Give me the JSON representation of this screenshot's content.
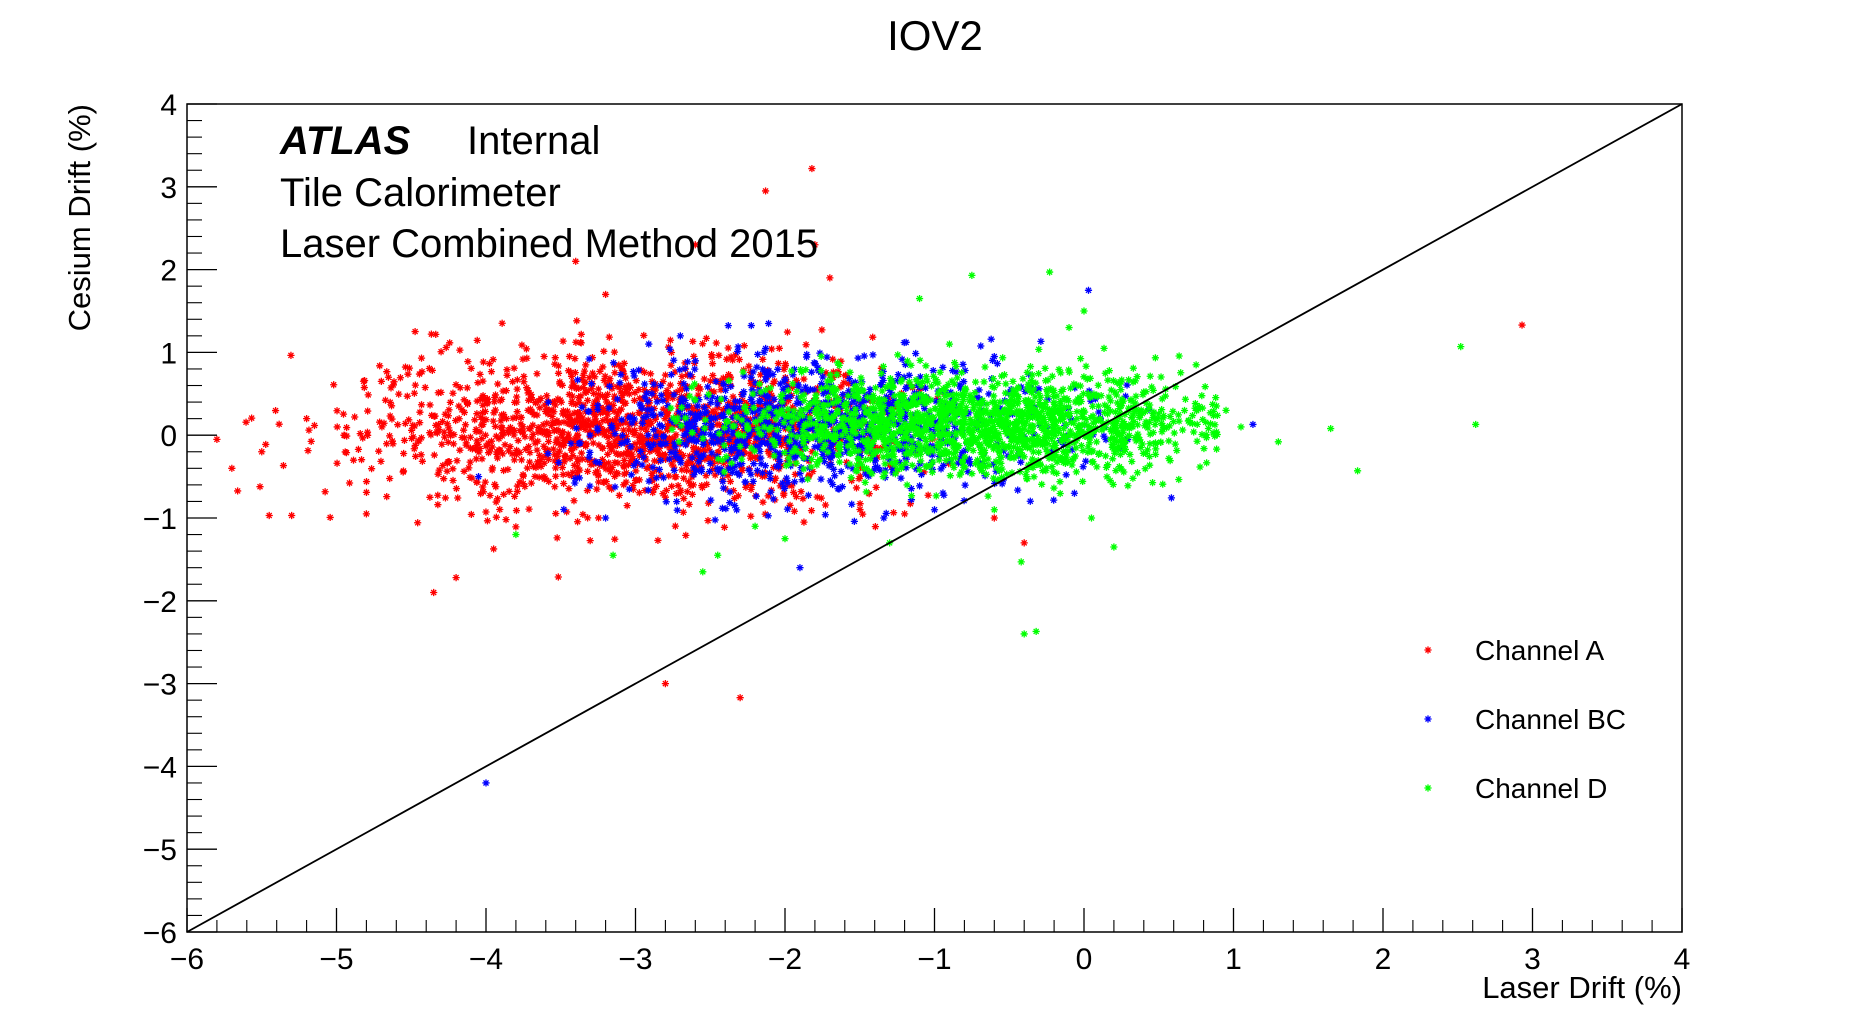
{
  "chart_data": {
    "type": "scatter",
    "title": "IOV2",
    "xlabel": "Laser Drift (%)",
    "ylabel": "Cesium Drift (%)",
    "xlim": [
      -6,
      4
    ],
    "ylim": [
      -6,
      4
    ],
    "xticks": [
      "−6",
      "−5",
      "−4",
      "−3",
      "−2",
      "−1",
      "0",
      "1",
      "2",
      "3",
      "4"
    ],
    "yticks": [
      "−6",
      "−5",
      "−4",
      "−3",
      "−2",
      "−1",
      "0",
      "1",
      "2",
      "3",
      "4"
    ],
    "marker": "asterisk",
    "grid": false,
    "legend_position": "bottom-right",
    "annotations": {
      "atlas": "ATLAS",
      "internal": "Internal",
      "line2": "Tile Calorimeter",
      "line3": "Laser Combined Method 2015"
    },
    "reference_line": {
      "x": [
        -6,
        4
      ],
      "y": [
        -6,
        4
      ],
      "color": "#000000"
    },
    "series": [
      {
        "name": "Channel A",
        "color": "#ff0000",
        "cluster": {
          "x_center": -3.0,
          "x_spread": 0.9,
          "x_range": [
            -5.8,
            -0.9
          ],
          "y_center": 0.05,
          "y_spread": 0.45,
          "count": 1600
        },
        "points": [
          [
            -1.82,
            3.22
          ],
          [
            -2.13,
            2.95
          ],
          [
            -1.7,
            1.9
          ],
          [
            -1.8,
            2.3
          ],
          [
            -3.4,
            2.1
          ],
          [
            -3.2,
            1.7
          ],
          [
            -2.6,
            2.3
          ],
          [
            -2.8,
            -3.0
          ],
          [
            -2.3,
            -3.17
          ],
          [
            -4.35,
            -1.9
          ],
          [
            -4.2,
            -1.72
          ],
          [
            -5.45,
            -0.97
          ],
          [
            -5.3,
            -0.97
          ],
          [
            -5.7,
            -0.4
          ],
          [
            -5.8,
            -0.05
          ],
          [
            -5.5,
            -0.2
          ],
          [
            -5.2,
            0.2
          ],
          [
            -4.95,
            0.0
          ],
          [
            -4.8,
            -0.95
          ],
          [
            -4.7,
            0.65
          ],
          [
            2.93,
            1.33
          ],
          [
            -0.4,
            -1.3
          ],
          [
            -0.6,
            -1.0
          ],
          [
            -1.2,
            -0.95
          ]
        ]
      },
      {
        "name": "Channel BC",
        "color": "#0000ff",
        "cluster": {
          "x_center": -1.8,
          "x_spread": 0.75,
          "x_range": [
            -3.6,
            0.6
          ],
          "y_center": 0.1,
          "y_spread": 0.38,
          "count": 1100
        },
        "points": [
          [
            0.03,
            1.75
          ],
          [
            -1.9,
            -1.6
          ],
          [
            -4.0,
            -4.2
          ],
          [
            1.13,
            0.13
          ],
          [
            -2.7,
            1.2
          ],
          [
            -0.6,
            0.95
          ],
          [
            -4.05,
            -0.5
          ],
          [
            -3.2,
            -1.0
          ],
          [
            -1.0,
            -0.9
          ]
        ]
      },
      {
        "name": "Channel D",
        "color": "#00ff00",
        "cluster": {
          "x_center": -0.7,
          "x_spread": 0.85,
          "x_range": [
            -2.8,
            0.9
          ],
          "y_center": 0.12,
          "y_spread": 0.3,
          "count": 1600
        },
        "points": [
          [
            -0.75,
            1.93
          ],
          [
            -0.23,
            1.97
          ],
          [
            -1.1,
            1.65
          ],
          [
            2.52,
            1.07
          ],
          [
            2.62,
            0.13
          ],
          [
            1.65,
            0.08
          ],
          [
            1.3,
            -0.08
          ],
          [
            1.83,
            -0.43
          ],
          [
            -0.4,
            -2.4
          ],
          [
            -0.32,
            -2.37
          ],
          [
            0.2,
            -1.35
          ],
          [
            -0.42,
            -1.53
          ],
          [
            -1.3,
            -1.3
          ],
          [
            -2.45,
            -1.45
          ],
          [
            -3.15,
            -1.45
          ],
          [
            -3.8,
            -1.2
          ],
          [
            -2.0,
            -1.25
          ],
          [
            -0.6,
            -0.9
          ],
          [
            0.05,
            -1.0
          ],
          [
            0.0,
            1.5
          ],
          [
            0.75,
            0.85
          ],
          [
            0.95,
            0.3
          ],
          [
            1.05,
            0.1
          ],
          [
            -0.9,
            1.1
          ],
          [
            -0.1,
            1.3
          ],
          [
            -2.2,
            -1.1
          ],
          [
            -2.55,
            -1.65
          ]
        ]
      }
    ]
  }
}
